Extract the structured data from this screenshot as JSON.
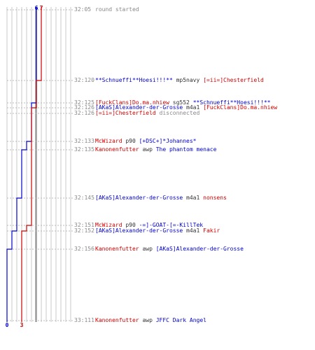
{
  "chart_data": {
    "type": "line",
    "title": "",
    "xlabel": "",
    "ylabel": "",
    "series": [
      {
        "color": "#0000cc",
        "start_score": 6,
        "end_score": 0,
        "score_changes": [
          {
            "time": "32:125",
            "score": 5
          },
          {
            "time": "32:133",
            "score": 4
          },
          {
            "time": "32:135",
            "score": 3
          },
          {
            "time": "32:145",
            "score": 2
          },
          {
            "time": "32:152",
            "score": 1
          },
          {
            "time": "32:156",
            "score": 0
          }
        ]
      },
      {
        "color": "#cc0000",
        "start_score": 7,
        "end_score": 3,
        "score_changes": [
          {
            "time": "32:120",
            "score": 6
          },
          {
            "time": "32:126",
            "score": 5
          },
          {
            "time": "32:151",
            "score": 4
          },
          {
            "time": "32:152",
            "score": 3
          }
        ]
      }
    ],
    "events": [
      {
        "time": "32:05",
        "parts": [
          {
            "text": "round started",
            "color": "#888888"
          }
        ]
      },
      {
        "time": "32:120",
        "parts": [
          {
            "text": "**Schnueffi**Hoesi!!!**",
            "color": "#0000cc"
          },
          {
            "text": "mp5navy",
            "color": "#333333"
          },
          {
            "text": "[=ii=]Chesterfield",
            "color": "#cc0000"
          }
        ]
      },
      {
        "time": "32:125",
        "parts": [
          {
            "text": "[FuckClans]Do.ma.nhiew",
            "color": "#cc0000"
          },
          {
            "text": "sg552",
            "color": "#333333"
          },
          {
            "text": "**Schnueffi**Hoesi!!!**",
            "color": "#0000cc"
          }
        ]
      },
      {
        "time": "32:126",
        "parts": [
          {
            "text": "[AKaS]Alexander-der-Grosse",
            "color": "#0000cc"
          },
          {
            "text": "m4a1",
            "color": "#333333"
          },
          {
            "text": "[FuckClans]Do.ma.nhiew",
            "color": "#cc0000"
          }
        ]
      },
      {
        "time": "32:126",
        "parts": [
          {
            "text": "[=ii=]Chesterfield",
            "color": "#cc0000"
          },
          {
            "text": "disconnected",
            "color": "#888888"
          }
        ]
      },
      {
        "time": "32:133",
        "parts": [
          {
            "text": "McWizard",
            "color": "#cc0000"
          },
          {
            "text": "p90",
            "color": "#333333"
          },
          {
            "text": "[+DSC+]*Johannes*",
            "color": "#0000cc"
          }
        ]
      },
      {
        "time": "32:135",
        "parts": [
          {
            "text": "Kanonenfutter",
            "color": "#cc0000"
          },
          {
            "text": "awp",
            "color": "#333333"
          },
          {
            "text": "The phantom menace",
            "color": "#0000cc"
          }
        ]
      },
      {
        "time": "32:145",
        "parts": [
          {
            "text": "[AKaS]Alexander-der-Grosse",
            "color": "#0000cc"
          },
          {
            "text": "m4a1",
            "color": "#333333"
          },
          {
            "text": "nonsens",
            "color": "#cc0000"
          }
        ]
      },
      {
        "time": "32:151",
        "parts": [
          {
            "text": "McWizard",
            "color": "#cc0000"
          },
          {
            "text": "p90",
            "color": "#333333"
          },
          {
            "text": "-=]-GOAT-[=-KillTek",
            "color": "#0000cc"
          }
        ]
      },
      {
        "time": "32:152",
        "parts": [
          {
            "text": "[AKaS]Alexander-der-Grosse",
            "color": "#0000cc"
          },
          {
            "text": "m4a1",
            "color": "#333333"
          },
          {
            "text": "Fakir",
            "color": "#cc0000"
          }
        ]
      },
      {
        "time": "32:156",
        "parts": [
          {
            "text": "Kanonenfutter",
            "color": "#cc0000"
          },
          {
            "text": "awp",
            "color": "#333333"
          },
          {
            "text": "[AKaS]Alexander-der-Grosse",
            "color": "#0000cc"
          }
        ]
      },
      {
        "time": "33:111",
        "parts": [
          {
            "text": "Kanonenfutter",
            "color": "#cc0000"
          },
          {
            "text": "awp",
            "color": "#333333"
          },
          {
            "text": "JFFC Dark Angel",
            "color": "#0000cc"
          }
        ]
      }
    ]
  }
}
